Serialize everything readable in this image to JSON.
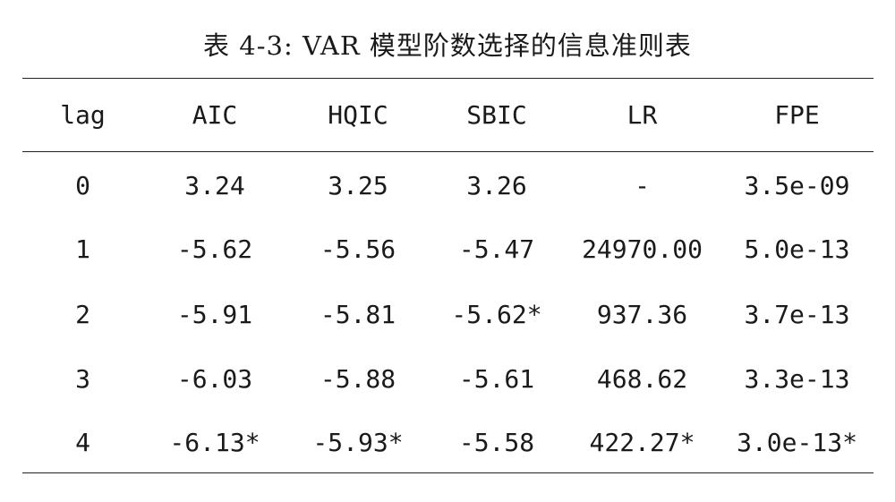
{
  "caption": "表 4-3: VAR 模型阶数选择的信息准则表",
  "table": {
    "headers": [
      "lag",
      "AIC",
      "HQIC",
      "SBIC",
      "LR",
      "FPE"
    ],
    "rows": [
      [
        "0",
        "3.24",
        "3.25",
        "3.26",
        "-",
        "3.5e-09"
      ],
      [
        "1",
        "-5.62",
        "-5.56",
        "-5.47",
        "24970.00",
        "5.0e-13"
      ],
      [
        "2",
        "-5.91",
        "-5.81",
        "-5.62*",
        "937.36",
        "3.7e-13"
      ],
      [
        "3",
        "-6.03",
        "-5.88",
        "-5.61",
        "468.62",
        "3.3e-13"
      ],
      [
        "4",
        "-6.13*",
        "-5.93*",
        "-5.58",
        "422.27*",
        "3.0e-13*"
      ]
    ]
  }
}
